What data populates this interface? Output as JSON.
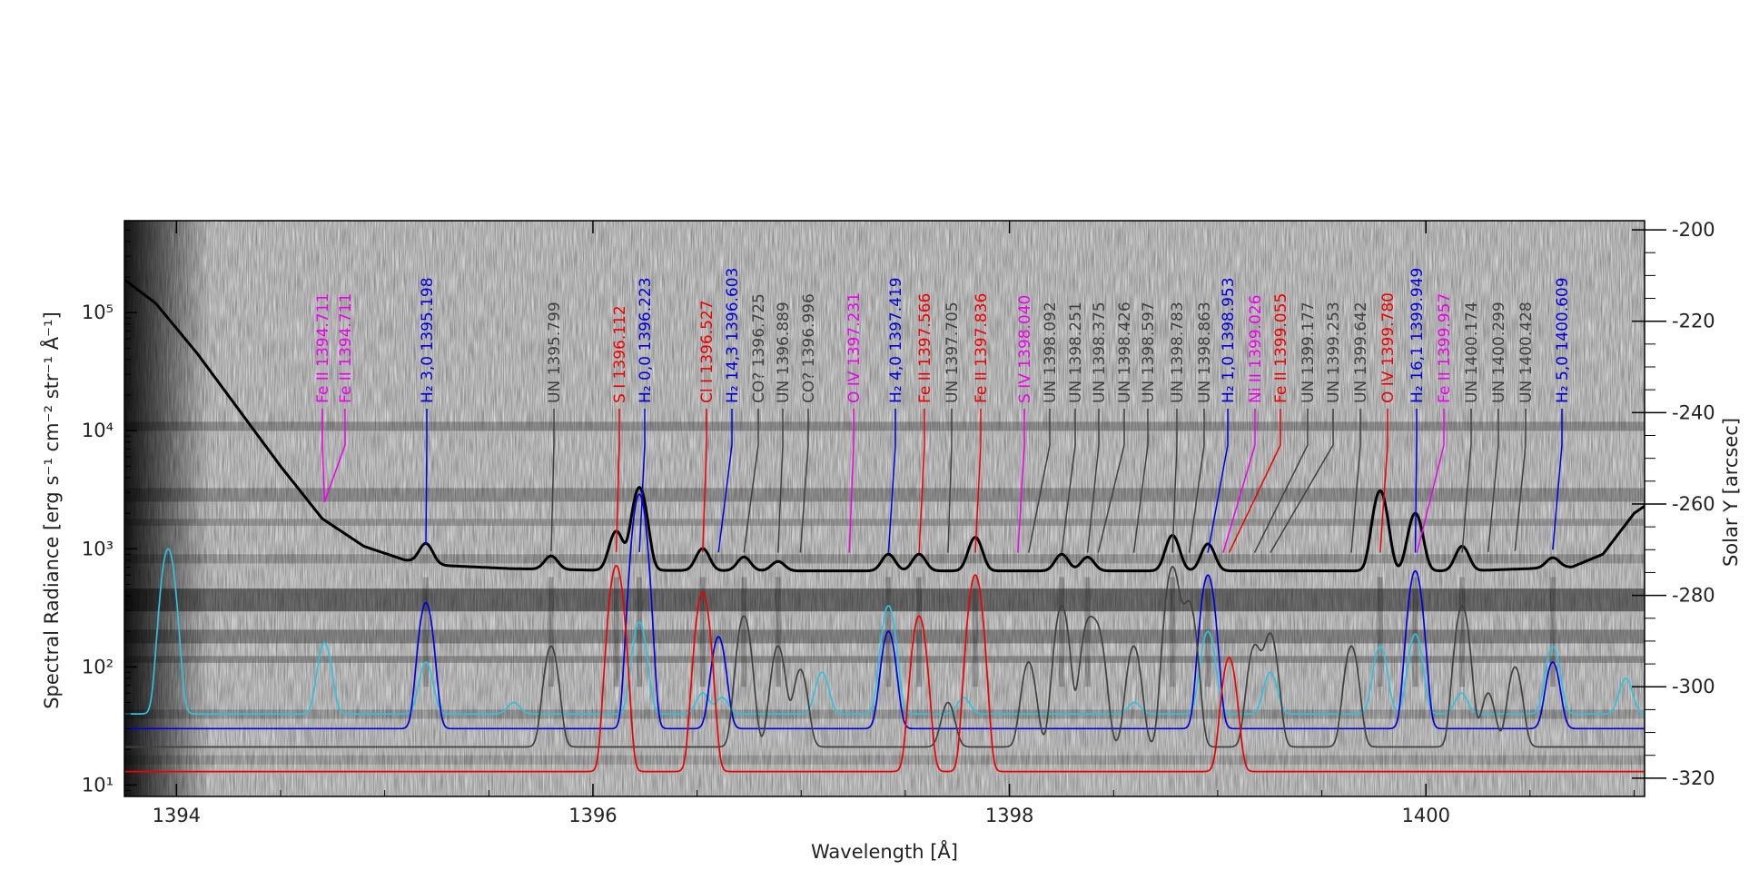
{
  "chart_data": {
    "type": "line",
    "title": "",
    "xlabel": "Wavelength [Å]",
    "ylabel": "Spectral Radiance [erg s⁻¹ cm⁻² str⁻¹ Å⁻¹]",
    "y2label": "Solar Y [arcsec]",
    "xlim": [
      1393.75,
      1401.05
    ],
    "ylim": [
      8,
      600000
    ],
    "yscale": "log",
    "y2lim": [
      -324,
      -198
    ],
    "x_ticks": [
      "1394",
      "1396",
      "1398",
      "1400"
    ],
    "y_ticks": [
      "10¹",
      "10²",
      "10³",
      "10⁴",
      "10⁵"
    ],
    "y2_ticks": [
      "-200",
      "-220",
      "-240",
      "-260",
      "-280",
      "-300",
      "-320"
    ],
    "legend": "none",
    "background": "grayscale spectrogram image (Solar Y vs wavelength)",
    "colors": {
      "observed": "#000000",
      "reference": "#30c0e0",
      "H2": "#0000dd",
      "red_lines": "#ee0000",
      "magenta_lines": "#ee00ee",
      "unidentified": "#404040"
    },
    "observed_spectrum": {
      "color": "#000000",
      "baseline": 650,
      "continuum_points": [
        [
          1393.75,
          190000
        ],
        [
          1393.9,
          120000
        ],
        [
          1394.1,
          45000
        ],
        [
          1394.3,
          15000
        ],
        [
          1394.5,
          5000
        ],
        [
          1394.7,
          1800
        ],
        [
          1394.9,
          1050
        ],
        [
          1395.1,
          800
        ],
        [
          1395.3,
          720
        ],
        [
          1395.6,
          680
        ],
        [
          1396.0,
          660
        ],
        [
          1397.0,
          650
        ],
        [
          1398.0,
          650
        ],
        [
          1399.0,
          650
        ],
        [
          1399.5,
          650
        ],
        [
          1400.2,
          650
        ],
        [
          1400.7,
          700
        ],
        [
          1400.85,
          900
        ],
        [
          1401.0,
          2000
        ],
        [
          1401.05,
          2300
        ]
      ],
      "peaks": [
        [
          1395.198,
          1000
        ],
        [
          1395.799,
          850
        ],
        [
          1396.112,
          1400
        ],
        [
          1396.223,
          3300
        ],
        [
          1396.527,
          1000
        ],
        [
          1396.725,
          850
        ],
        [
          1396.889,
          780
        ],
        [
          1397.419,
          900
        ],
        [
          1397.566,
          900
        ],
        [
          1397.836,
          1250
        ],
        [
          1398.251,
          900
        ],
        [
          1398.375,
          850
        ],
        [
          1398.783,
          1300
        ],
        [
          1398.953,
          1100
        ],
        [
          1399.78,
          3100
        ],
        [
          1399.949,
          2000
        ],
        [
          1400.174,
          1050
        ],
        [
          1400.609,
          800
        ]
      ]
    },
    "series": [
      {
        "name": "O IV",
        "color": "#30c0e0",
        "baseline": 40,
        "peaks": [
          [
            1393.96,
            1000
          ],
          [
            1394.711,
            160
          ],
          [
            1395.198,
            110
          ],
          [
            1395.62,
            50
          ],
          [
            1396.223,
            240
          ],
          [
            1396.527,
            60
          ],
          [
            1396.62,
            55
          ],
          [
            1397.1,
            90
          ],
          [
            1397.419,
            330
          ],
          [
            1397.78,
            55
          ],
          [
            1398.6,
            50
          ],
          [
            1398.953,
            200
          ],
          [
            1399.253,
            90
          ],
          [
            1399.78,
            150
          ],
          [
            1399.949,
            190
          ],
          [
            1400.17,
            60
          ],
          [
            1400.609,
            150
          ],
          [
            1400.96,
            80
          ]
        ]
      },
      {
        "name": "H₂",
        "color": "#0000dd",
        "baseline": 30,
        "peaks": [
          [
            1395.198,
            350
          ],
          [
            1396.223,
            2900
          ],
          [
            1396.603,
            180
          ],
          [
            1397.419,
            200
          ],
          [
            1398.953,
            600
          ],
          [
            1399.949,
            650
          ],
          [
            1400.609,
            110
          ]
        ]
      },
      {
        "name": "UN",
        "color": "#404040",
        "baseline": 21,
        "peaks": [
          [
            1395.799,
            150
          ],
          [
            1396.725,
            270
          ],
          [
            1396.889,
            150
          ],
          [
            1396.996,
            95
          ],
          [
            1397.705,
            50
          ],
          [
            1398.092,
            110
          ],
          [
            1398.251,
            330
          ],
          [
            1398.375,
            220
          ],
          [
            1398.426,
            190
          ],
          [
            1398.597,
            150
          ],
          [
            1398.783,
            700
          ],
          [
            1398.863,
            350
          ],
          [
            1399.177,
            150
          ],
          [
            1399.253,
            190
          ],
          [
            1399.642,
            150
          ],
          [
            1400.174,
            330
          ],
          [
            1400.299,
            60
          ],
          [
            1400.428,
            100
          ]
        ]
      },
      {
        "name": "S I, Cl I, Fe II",
        "color": "#ee0000",
        "baseline": 13,
        "peaks": [
          [
            1396.112,
            720
          ],
          [
            1396.527,
            430
          ],
          [
            1397.566,
            270
          ],
          [
            1397.836,
            600
          ],
          [
            1399.055,
            120
          ]
        ]
      }
    ],
    "line_labels": [
      {
        "text": "Fe II 1394.711",
        "color": "#ee00ee",
        "x": 1394.711,
        "lx": 1394.69
      },
      {
        "text": "Fe II 1394.711",
        "color": "#ee00ee",
        "x": 1394.711,
        "lx": 1394.92
      },
      {
        "text": "H₂ 3,0 1395.198",
        "color": "#0000dd",
        "x": 1395.198,
        "lx": 1395.198
      },
      {
        "text": "UN 1395.799",
        "color": "#404040",
        "x": 1395.799,
        "lx": 1395.799
      },
      {
        "text": "S I 1396.112",
        "color": "#ee0000",
        "x": 1396.112,
        "lx": 1396.112
      },
      {
        "text": "H₂ 0,0 1396.223",
        "color": "#0000dd",
        "x": 1396.223,
        "lx": 1396.27
      },
      {
        "text": "Cl I 1396.527",
        "color": "#ee0000",
        "x": 1396.527,
        "lx": 1396.527
      },
      {
        "text": "H₂ 14,3 1396.603",
        "color": "#0000dd",
        "x": 1396.603,
        "lx": 1396.75
      },
      {
        "text": "CO? 1396.725",
        "color": "#404040",
        "x": 1396.725,
        "lx": 1396.96
      },
      {
        "text": "UN 1396.889",
        "color": "#404040",
        "x": 1396.889,
        "lx": 1397.16
      },
      {
        "text": "CO? 1396.996",
        "color": "#404040",
        "x": 1396.996,
        "lx": 1397.37
      },
      {
        "text": "O IV 1397.231",
        "color": "#ee00ee",
        "x": 1397.231,
        "lx": 1397.6
      },
      {
        "text": "H₂ 4,0 1397.419",
        "color": "#0000dd",
        "x": 1397.419,
        "lx": 1397.82
      },
      {
        "text": "Fe II 1397.566",
        "color": "#ee0000",
        "x": 1397.566,
        "lx": 1398.05
      },
      {
        "text": "UN 1397.705",
        "color": "#404040",
        "x": 1397.705,
        "lx": 1398.27
      },
      {
        "text": "Fe II 1397.836",
        "color": "#ee0000",
        "x": 1397.836,
        "lx": 1398.48
      },
      {
        "text": "S IV 1398.040",
        "color": "#ee00ee",
        "x": 1398.04,
        "lx": 1398.72
      },
      {
        "text": "UN 1398.092",
        "color": "#404040",
        "x": 1398.092,
        "lx": 1398.94
      },
      {
        "text": "UN 1398.251",
        "color": "#404040",
        "x": 1398.251,
        "lx": 1399.15
      },
      {
        "text": "UN 1398.375",
        "color": "#404040",
        "x": 1398.375,
        "lx": 1399.36
      },
      {
        "text": "UN 1398.426",
        "color": "#404040",
        "x": 1398.426,
        "lx": 1399.56
      },
      {
        "text": "UN 1398.597",
        "color": "#404040",
        "x": 1398.597,
        "lx": 1399.76
      },
      {
        "text": "UN 1398.783",
        "color": "#404040",
        "x": 1398.783,
        "lx": 1399.96
      },
      {
        "text": "UN 1398.863",
        "color": "#404040",
        "x": 1398.863,
        "lx": 1400.16
      },
      {
        "text": "H₂ 1,0 1398.953",
        "color": "#0000dd",
        "x": 1398.953,
        "lx": 1400.36
      },
      {
        "text": "Ni II 1399.026",
        "color": "#ee00ee",
        "x": 1399.026,
        "lx": 1400.56
      },
      {
        "text": "Fe II 1399.055",
        "color": "#ee0000",
        "x": 1399.055,
        "lx": 1400.76
      },
      {
        "text": "UN 1399.177",
        "color": "#404040",
        "x": 1399.177,
        "lx": 1400.96
      },
      {
        "text": "UN 1399.253",
        "color": "#404040",
        "x": 1399.253,
        "lx": 1401.14
      },
      {
        "text": "UN 1399.642",
        "color": "#404040",
        "x": 1399.642,
        "lx": 1401.33
      },
      {
        "text": "O IV 1399.780",
        "color": "#ee0000",
        "x": 1399.78,
        "lx": 1401.53
      },
      {
        "text": "H₂ 16,1 1399.949",
        "color": "#0000dd",
        "x": 1399.949,
        "lx": 1401.72
      },
      {
        "text": "Fe II 1399.957",
        "color": "#ee00ee",
        "x": 1399.957,
        "lx": 1401.92
      },
      {
        "text": "UN 1400.174",
        "color": "#404040",
        "x": 1400.174,
        "lx": 1402.12
      },
      {
        "text": "UN 1400.299",
        "color": "#404040",
        "x": 1400.299,
        "lx": 1402.32
      },
      {
        "text": "UN 1400.428",
        "color": "#404040",
        "x": 1400.428,
        "lx": 1402.52
      },
      {
        "text": "H₂ 5,0 1400.609",
        "color": "#0000dd",
        "x": 1400.609,
        "lx": 1402.72
      }
    ]
  }
}
